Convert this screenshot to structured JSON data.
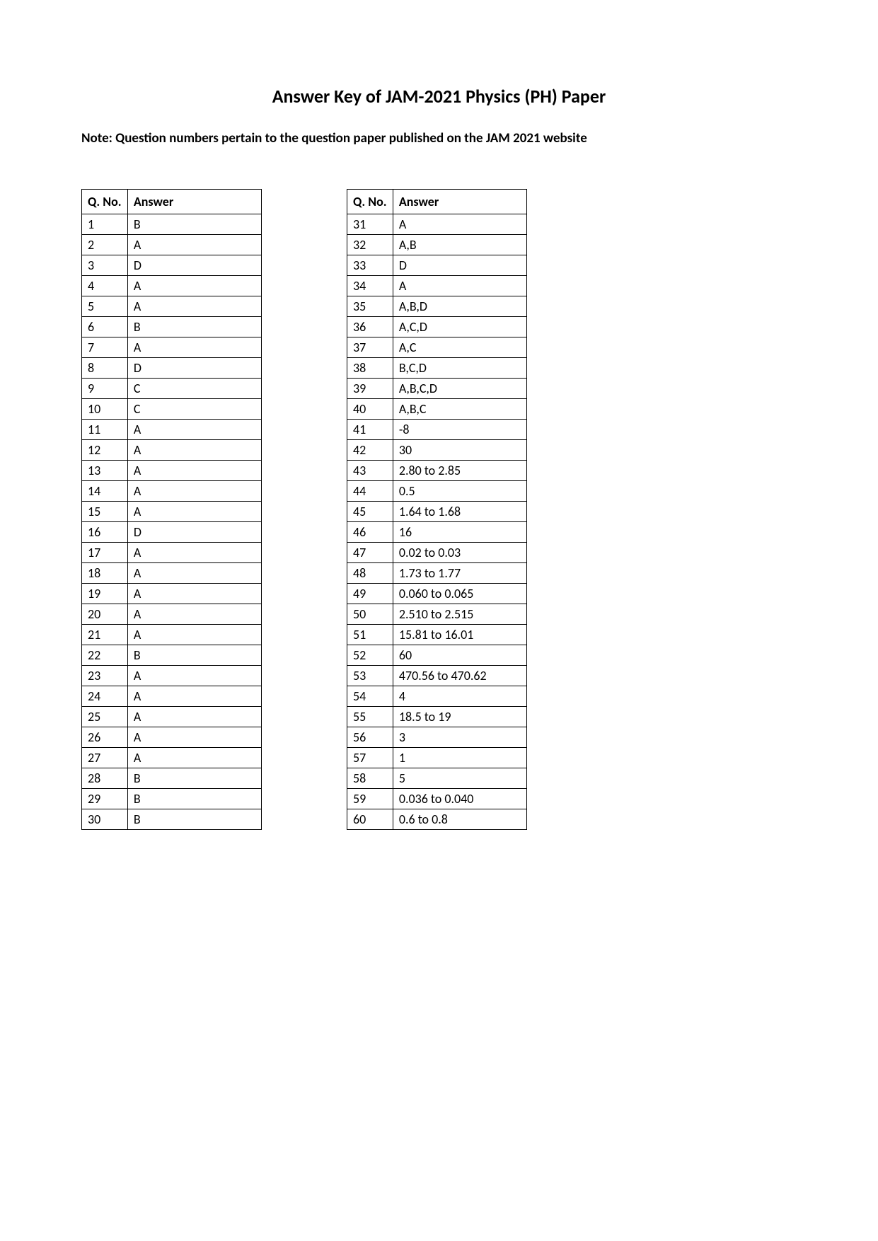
{
  "title": "Answer Key of JAM-2021 Physics (PH) Paper",
  "note": "Note: Question numbers pertain to the question paper published on the JAM 2021 website",
  "columns": {
    "qno": "Q. No.",
    "answer": "Answer"
  },
  "table1": {
    "rows": [
      {
        "q": "1",
        "a": "B"
      },
      {
        "q": "2",
        "a": "A"
      },
      {
        "q": "3",
        "a": "D"
      },
      {
        "q": "4",
        "a": "A"
      },
      {
        "q": "5",
        "a": "A"
      },
      {
        "q": "6",
        "a": "B"
      },
      {
        "q": "7",
        "a": "A"
      },
      {
        "q": "8",
        "a": "D"
      },
      {
        "q": "9",
        "a": "C"
      },
      {
        "q": "10",
        "a": "C"
      },
      {
        "q": "11",
        "a": "A"
      },
      {
        "q": "12",
        "a": "A"
      },
      {
        "q": "13",
        "a": "A"
      },
      {
        "q": "14",
        "a": "A"
      },
      {
        "q": "15",
        "a": "A"
      },
      {
        "q": "16",
        "a": "D"
      },
      {
        "q": "17",
        "a": "A"
      },
      {
        "q": "18",
        "a": "A"
      },
      {
        "q": "19",
        "a": "A"
      },
      {
        "q": "20",
        "a": "A"
      },
      {
        "q": "21",
        "a": "A"
      },
      {
        "q": "22",
        "a": "B"
      },
      {
        "q": "23",
        "a": "A"
      },
      {
        "q": "24",
        "a": "A"
      },
      {
        "q": "25",
        "a": "A"
      },
      {
        "q": "26",
        "a": "A"
      },
      {
        "q": "27",
        "a": "A"
      },
      {
        "q": "28",
        "a": "B"
      },
      {
        "q": "29",
        "a": "B"
      },
      {
        "q": "30",
        "a": "B"
      }
    ]
  },
  "table2": {
    "rows": [
      {
        "q": "31",
        "a": "A"
      },
      {
        "q": "32",
        "a": "A,B"
      },
      {
        "q": "33",
        "a": "D"
      },
      {
        "q": "34",
        "a": "A"
      },
      {
        "q": "35",
        "a": "A,B,D"
      },
      {
        "q": "36",
        "a": "A,C,D"
      },
      {
        "q": "37",
        "a": "A,C"
      },
      {
        "q": "38",
        "a": "B,C,D"
      },
      {
        "q": "39",
        "a": "A,B,C,D"
      },
      {
        "q": "40",
        "a": "A,B,C"
      },
      {
        "q": "41",
        "a": "-8"
      },
      {
        "q": "42",
        "a": "30"
      },
      {
        "q": "43",
        "a": "2.80 to 2.85"
      },
      {
        "q": "44",
        "a": "0.5"
      },
      {
        "q": "45",
        "a": "1.64 to 1.68"
      },
      {
        "q": "46",
        "a": "16"
      },
      {
        "q": "47",
        "a": "0.02 to 0.03"
      },
      {
        "q": "48",
        "a": "1.73 to 1.77"
      },
      {
        "q": "49",
        "a": "0.060 to 0.065"
      },
      {
        "q": "50",
        "a": "2.510 to 2.515"
      },
      {
        "q": "51",
        "a": "15.81 to 16.01"
      },
      {
        "q": "52",
        "a": "60"
      },
      {
        "q": "53",
        "a": "470.56 to 470.62"
      },
      {
        "q": "54",
        "a": "4"
      },
      {
        "q": "55",
        "a": "18.5 to 19"
      },
      {
        "q": "56",
        "a": "3"
      },
      {
        "q": "57",
        "a": "1"
      },
      {
        "q": "58",
        "a": "5"
      },
      {
        "q": "59",
        "a": "0.036 to 0.040"
      },
      {
        "q": "60",
        "a": "0.6 to 0.8"
      }
    ]
  }
}
